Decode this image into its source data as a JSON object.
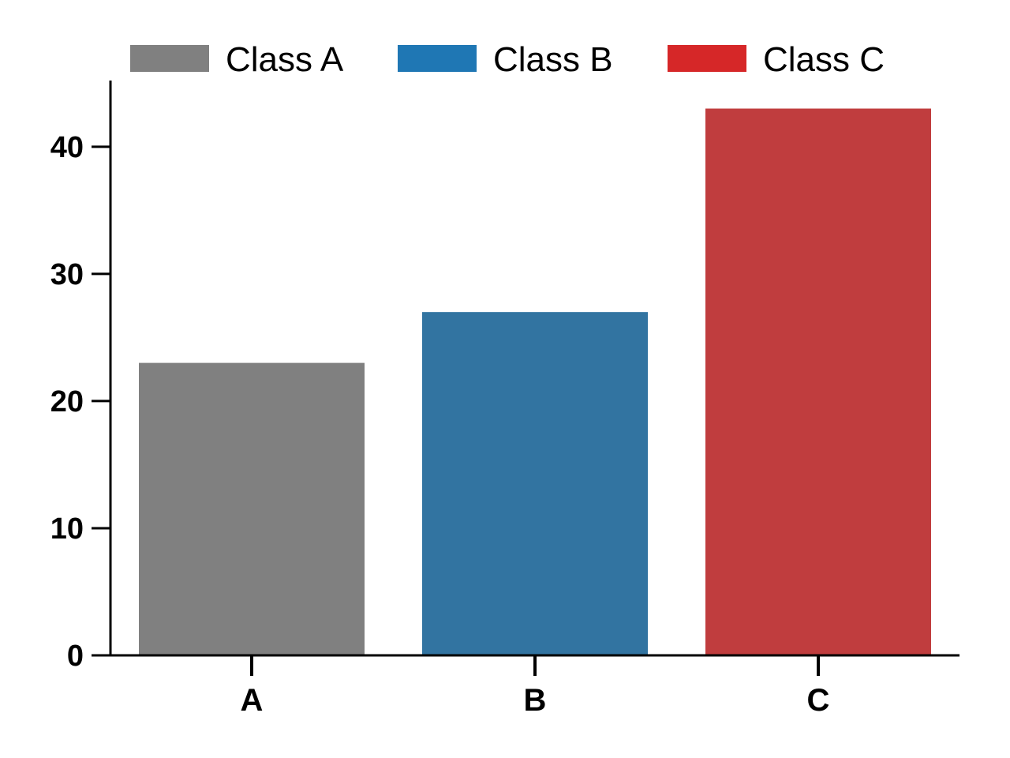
{
  "chart_data": {
    "type": "bar",
    "categories": [
      "A",
      "B",
      "C"
    ],
    "values": [
      23,
      27,
      43
    ],
    "bar_colors": [
      "#808080",
      "#3274a1",
      "#c03d3e"
    ],
    "ylim": [
      0,
      45
    ],
    "yticks": [
      0,
      10,
      20,
      30,
      40
    ],
    "grid": false,
    "legend": {
      "placement": "top",
      "entries": [
        {
          "label": "Class A",
          "color": "#808080"
        },
        {
          "label": "Class B",
          "color": "#1f77b4"
        },
        {
          "label": "Class C",
          "color": "#d62728"
        }
      ]
    }
  }
}
